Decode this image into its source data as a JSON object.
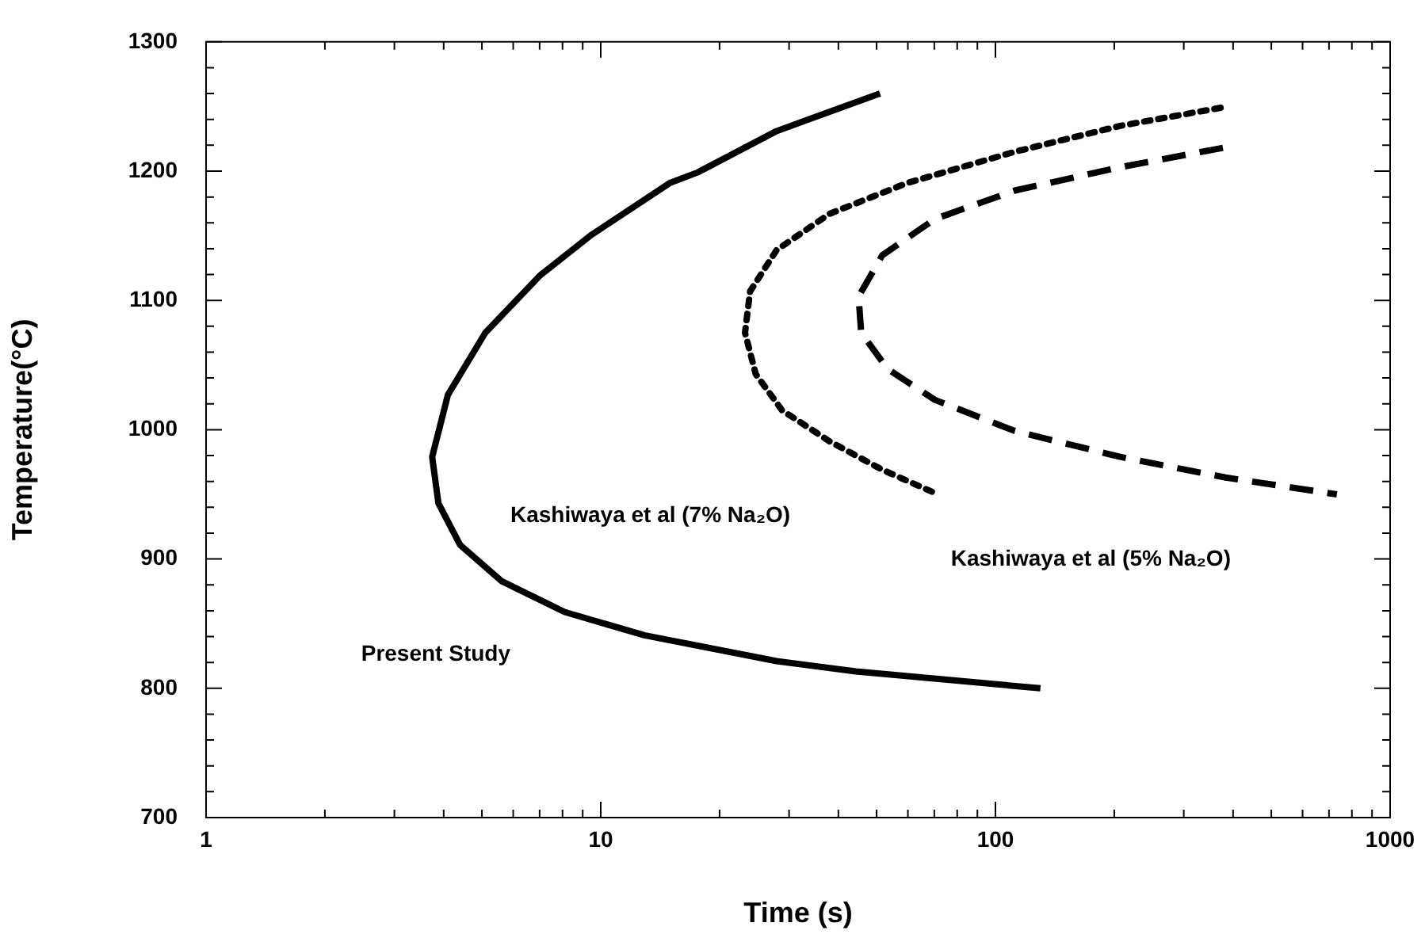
{
  "chart_data": {
    "type": "line",
    "xlabel": "Time (s)",
    "ylabel": "Temperature(°C)",
    "log": "x",
    "xlim": [
      1,
      1000
    ],
    "ylim": [
      700,
      1300
    ],
    "xticks": [
      1,
      {
        "value": 2,
        "label": null
      },
      {
        "value": 3,
        "label": null
      },
      {
        "value": 4,
        "label": null
      },
      {
        "value": 5,
        "label": null
      },
      {
        "value": 6,
        "label": null
      },
      {
        "value": 7,
        "label": null
      },
      {
        "value": 8,
        "label": null
      },
      {
        "value": 9,
        "label": null
      },
      10,
      {
        "value": 20,
        "label": null
      },
      {
        "value": 30,
        "label": null
      },
      {
        "value": 40,
        "label": null
      },
      {
        "value": 50,
        "label": null
      },
      {
        "value": 60,
        "label": null
      },
      {
        "value": 70,
        "label": null
      },
      {
        "value": 80,
        "label": null
      },
      {
        "value": 90,
        "label": null
      },
      100,
      {
        "value": 200,
        "label": null
      },
      {
        "value": 300,
        "label": null
      },
      {
        "value": 400,
        "label": null
      },
      {
        "value": 500,
        "label": null
      },
      {
        "value": 600,
        "label": null
      },
      {
        "value": 700,
        "label": null
      },
      {
        "value": 800,
        "label": null
      },
      {
        "value": 900,
        "label": null
      },
      1000
    ],
    "yticks": [
      700,
      {
        "value": 720,
        "label": null
      },
      {
        "value": 740,
        "label": null
      },
      {
        "value": 760,
        "label": null
      },
      {
        "value": 780,
        "label": null
      },
      800,
      {
        "value": 820,
        "label": null
      },
      {
        "value": 840,
        "label": null
      },
      {
        "value": 860,
        "label": null
      },
      {
        "value": 880,
        "label": null
      },
      900,
      {
        "value": 920,
        "label": null
      },
      {
        "value": 940,
        "label": null
      },
      {
        "value": 960,
        "label": null
      },
      {
        "value": 980,
        "label": null
      },
      1000,
      {
        "value": 1020,
        "label": null
      },
      {
        "value": 1040,
        "label": null
      },
      {
        "value": 1060,
        "label": null
      },
      {
        "value": 1080,
        "label": null
      },
      1100,
      {
        "value": 1120,
        "label": null
      },
      {
        "value": 1140,
        "label": null
      },
      {
        "value": 1160,
        "label": null
      },
      {
        "value": 1180,
        "label": null
      },
      1200,
      {
        "value": 1220,
        "label": null
      },
      {
        "value": 1240,
        "label": null
      },
      {
        "value": 1260,
        "label": null
      },
      {
        "value": 1280,
        "label": null
      },
      1300
    ],
    "series": [
      {
        "color": "#000000",
        "line_style": "solid",
        "x": [
          51,
          27.9,
          17.6,
          15,
          9.5,
          7,
          5.1,
          4.1,
          3.74,
          3.88,
          4.4,
          5.6,
          8.1,
          12.9,
          27.9,
          44.3,
          130
        ],
        "values": [
          1260,
          1231,
          1199,
          1191,
          1151,
          1119,
          1075,
          1027,
          979,
          943,
          911,
          883,
          859,
          841,
          821,
          813,
          800
        ]
      },
      {
        "color": "#000000",
        "line_style": "dotted",
        "x": [
          372,
          207,
          112,
          60,
          38,
          27.9,
          23.9,
          23.2,
          24.7,
          28.8,
          38,
          51.7,
          71.5
        ],
        "values": [
          1249,
          1235,
          1215,
          1191,
          1167,
          1139,
          1107,
          1075,
          1043,
          1015,
          991,
          969,
          950
        ]
      },
      {
        "color": "#000000",
        "line_style": "dashed",
        "x": [
          377,
          207,
          112,
          70.3,
          51.7,
          45,
          45.7,
          53.3,
          70.3,
          112,
          207,
          383,
          733
        ],
        "values": [
          1218,
          1203,
          1185,
          1163,
          1135,
          1103,
          1075,
          1047,
          1023,
          999,
          979,
          963,
          950
        ]
      }
    ],
    "annotations": [
      "Present Study",
      "Kashiwaya et al (7% Na₂O)",
      "Kashiwaya et al (5% Na₂O)"
    ]
  }
}
